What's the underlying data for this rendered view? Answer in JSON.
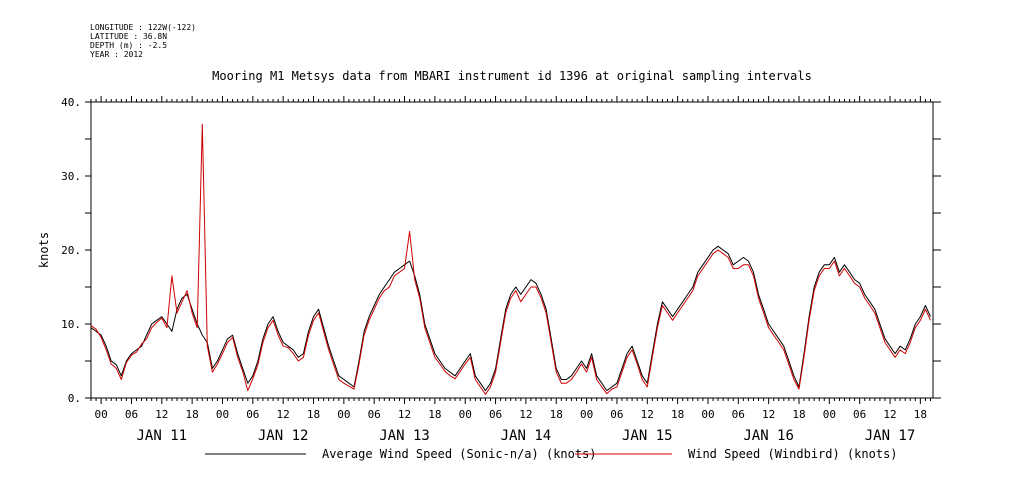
{
  "meta": {
    "lines": [
      "LONGITUDE : 122W(-122)",
      "LATITUDE : 36.8N",
      "DEPTH (m) : -2.5",
      "YEAR : 2012"
    ]
  },
  "chart_data": {
    "type": "line",
    "title": "Mooring M1 Metsys data from MBARI instrument id 1396 at original sampling intervals",
    "ylabel": "knots",
    "xlabel": "",
    "ylim": [
      0,
      40
    ],
    "yticks": [
      0,
      10,
      20,
      30,
      40
    ],
    "ytick_labels": [
      "0.",
      "10.",
      "20.",
      "30.",
      "40."
    ],
    "xlim_hours": [
      -2,
      164.5
    ],
    "x_hour_ticks": [
      0,
      6,
      12,
      18,
      24,
      30,
      36,
      42,
      48,
      54,
      60,
      66,
      72,
      78,
      84,
      90,
      96,
      102,
      108,
      114,
      120,
      126,
      132,
      138,
      144,
      150,
      156,
      162
    ],
    "x_hour_tick_labels": [
      "00",
      "06",
      "12",
      "18",
      "00",
      "06",
      "12",
      "18",
      "00",
      "06",
      "12",
      "18",
      "00",
      "06",
      "12",
      "18",
      "00",
      "06",
      "12",
      "18",
      "00",
      "06",
      "12",
      "18",
      "00",
      "06",
      "12",
      "18"
    ],
    "day_labels": [
      {
        "label": "JAN 11",
        "hour": 12
      },
      {
        "label": "JAN 12",
        "hour": 36
      },
      {
        "label": "JAN 13",
        "hour": 60
      },
      {
        "label": "JAN 14",
        "hour": 84
      },
      {
        "label": "JAN 15",
        "hour": 108
      },
      {
        "label": "JAN 16",
        "hour": 132
      },
      {
        "label": "JAN 17",
        "hour": 156
      }
    ],
    "grid": false,
    "legend_position": "bottom",
    "series": [
      {
        "name": "Average Wind Speed (Sonic-n/a) (knots)",
        "color": "#000000",
        "x": [
          -2,
          -1,
          0,
          1,
          2,
          3,
          4,
          5,
          6,
          7,
          8,
          9,
          10,
          11,
          12,
          13,
          14,
          15,
          16,
          17,
          18,
          19,
          20,
          21,
          22,
          23,
          24,
          25,
          26,
          27,
          28,
          29,
          30,
          31,
          32,
          33,
          34,
          35,
          36,
          37,
          38,
          39,
          40,
          41,
          42,
          43,
          44,
          45,
          46,
          47,
          48,
          49,
          50,
          51,
          52,
          53,
          54,
          55,
          56,
          57,
          58,
          59,
          60,
          61,
          62,
          63,
          64,
          65,
          66,
          67,
          68,
          69,
          70,
          71,
          72,
          73,
          74,
          75,
          76,
          77,
          78,
          79,
          80,
          81,
          82,
          83,
          84,
          85,
          86,
          87,
          88,
          89,
          90,
          91,
          92,
          93,
          94,
          95,
          96,
          97,
          98,
          99,
          100,
          101,
          102,
          103,
          104,
          105,
          106,
          107,
          108,
          109,
          110,
          111,
          112,
          113,
          114,
          115,
          116,
          117,
          118,
          119,
          120,
          121,
          122,
          123,
          124,
          125,
          126,
          127,
          128,
          129,
          130,
          131,
          132,
          133,
          134,
          135,
          136,
          137,
          138,
          139,
          140,
          141,
          142,
          143,
          144,
          145,
          146,
          147,
          148,
          149,
          150,
          151,
          152,
          153,
          154,
          155,
          156,
          157,
          158,
          159,
          160,
          161,
          162,
          163,
          164
        ],
        "y": [
          9.5,
          9,
          8.5,
          7,
          5,
          4.5,
          3,
          5,
          6,
          6.5,
          7,
          8.5,
          10,
          10.5,
          11,
          10,
          9,
          12,
          13.5,
          14,
          12,
          10,
          8.5,
          7.5,
          4,
          5,
          6.5,
          8,
          8.5,
          6,
          4,
          2,
          3,
          5,
          8,
          10,
          11,
          9,
          7.5,
          7,
          6.5,
          5.5,
          6,
          9,
          11,
          12,
          9.5,
          7,
          5,
          3,
          2.5,
          2,
          1.5,
          5,
          9,
          11,
          12.5,
          14,
          15,
          16,
          17,
          17.5,
          18,
          18.5,
          16.5,
          14,
          10,
          8,
          6,
          5,
          4,
          3.5,
          3,
          4,
          5,
          6,
          3,
          2,
          1,
          2,
          4,
          8,
          12,
          14,
          15,
          14,
          15,
          16,
          15.5,
          14,
          12,
          8,
          4,
          2.5,
          2.5,
          3,
          4,
          5,
          4,
          6,
          3,
          2,
          1,
          1.5,
          2,
          4,
          6,
          7,
          5,
          3,
          2,
          6,
          10,
          13,
          12,
          11,
          12,
          13,
          14,
          15,
          17,
          18,
          19,
          20,
          20.5,
          20,
          19.5,
          18,
          18.5,
          19,
          18.5,
          17,
          14,
          12,
          10,
          9,
          8,
          7,
          5,
          3,
          1.5,
          6,
          11,
          15,
          17,
          18,
          18,
          19,
          17,
          18,
          17,
          16,
          15.5,
          14,
          13,
          12,
          10,
          8,
          7,
          6,
          7,
          6.5,
          8,
          10,
          11,
          12.5,
          11
        ]
      },
      {
        "name": "Wind Speed (Windbird) (knots)",
        "color": "#d00000",
        "x": [
          -2,
          -1,
          0,
          1,
          2,
          3,
          4,
          5,
          6,
          7,
          8,
          9,
          10,
          11,
          12,
          13,
          14,
          15,
          16,
          17,
          18,
          19,
          20,
          21,
          22,
          23,
          24,
          25,
          26,
          27,
          28,
          29,
          30,
          31,
          32,
          33,
          34,
          35,
          36,
          37,
          38,
          39,
          40,
          41,
          42,
          43,
          44,
          45,
          46,
          47,
          48,
          49,
          50,
          51,
          52,
          53,
          54,
          55,
          56,
          57,
          58,
          59,
          60,
          61,
          62,
          63,
          64,
          65,
          66,
          67,
          68,
          69,
          70,
          71,
          72,
          73,
          74,
          75,
          76,
          77,
          78,
          79,
          80,
          81,
          82,
          83,
          84,
          85,
          86,
          87,
          88,
          89,
          90,
          91,
          92,
          93,
          94,
          95,
          96,
          97,
          98,
          99,
          100,
          101,
          102,
          103,
          104,
          105,
          106,
          107,
          108,
          109,
          110,
          111,
          112,
          113,
          114,
          115,
          116,
          117,
          118,
          119,
          120,
          121,
          122,
          123,
          124,
          125,
          126,
          127,
          128,
          129,
          130,
          131,
          132,
          133,
          134,
          135,
          136,
          137,
          138,
          139,
          140,
          141,
          142,
          143,
          144,
          145,
          146,
          147,
          148,
          149,
          150,
          151,
          152,
          153,
          154,
          155,
          156,
          157,
          158,
          159,
          160,
          161,
          162,
          163,
          164
        ],
        "y": [
          9.8,
          9.3,
          8.2,
          6.5,
          4.6,
          4.0,
          2.5,
          4.8,
          5.8,
          6.2,
          7.3,
          8.0,
          9.5,
          10.2,
          10.8,
          9.5,
          16.5,
          11.5,
          13.0,
          14.5,
          11.5,
          9.5,
          37.0,
          7.0,
          3.5,
          4.6,
          6.0,
          7.5,
          8.2,
          5.5,
          3.6,
          1.0,
          2.6,
          4.5,
          7.5,
          9.5,
          10.5,
          8.5,
          7.0,
          6.8,
          6.0,
          5.0,
          5.5,
          8.5,
          10.5,
          11.5,
          9.0,
          6.5,
          4.5,
          2.5,
          2.0,
          1.6,
          1.2,
          4.6,
          8.5,
          10.5,
          12.0,
          13.5,
          14.5,
          15.0,
          16.5,
          17.0,
          17.5,
          22.5,
          16.0,
          13.5,
          9.5,
          7.5,
          5.5,
          4.6,
          3.6,
          3.0,
          2.6,
          3.6,
          4.6,
          5.5,
          2.5,
          1.5,
          0.5,
          1.5,
          3.5,
          7.5,
          11.5,
          13.5,
          14.5,
          13.0,
          14.0,
          15.0,
          15.0,
          13.5,
          11.5,
          7.5,
          3.5,
          2.0,
          2.0,
          2.5,
          3.5,
          4.6,
          3.5,
          5.5,
          2.5,
          1.5,
          0.6,
          1.2,
          1.5,
          3.5,
          5.5,
          6.5,
          4.6,
          2.5,
          1.5,
          5.5,
          9.5,
          12.5,
          11.5,
          10.5,
          11.5,
          12.5,
          13.5,
          14.5,
          16.5,
          17.5,
          18.5,
          19.5,
          20.0,
          19.5,
          19.0,
          17.5,
          17.5,
          18.0,
          18.0,
          16.5,
          13.5,
          11.5,
          9.5,
          8.5,
          7.5,
          6.5,
          4.5,
          2.5,
          1.2,
          5.5,
          10.5,
          14.5,
          16.5,
          17.5,
          17.5,
          18.5,
          16.5,
          17.5,
          16.5,
          15.5,
          15.0,
          13.5,
          12.5,
          11.5,
          9.5,
          7.5,
          6.5,
          5.5,
          6.5,
          6.0,
          7.5,
          9.5,
          10.5,
          12.0,
          10.5
        ]
      }
    ]
  }
}
